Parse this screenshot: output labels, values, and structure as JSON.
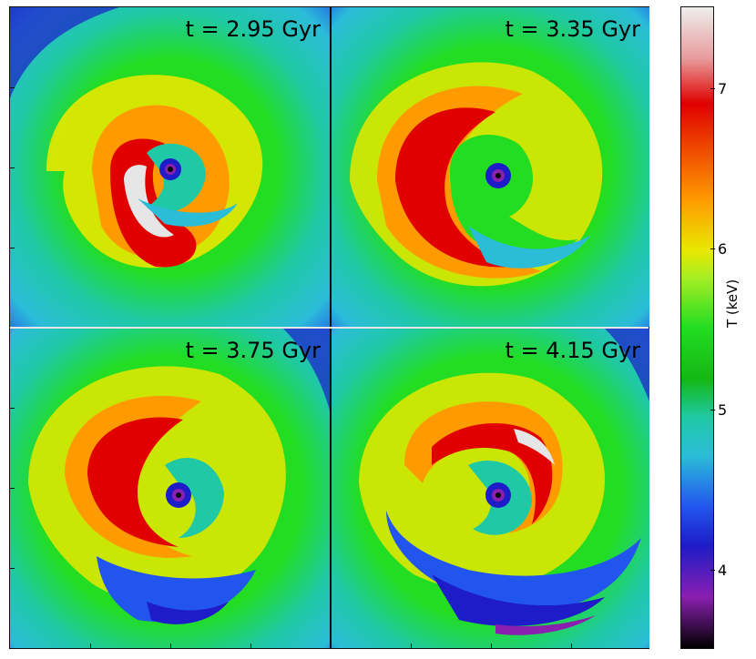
{
  "panels": [
    {
      "time": "t = 2.95 Gyr"
    },
    {
      "time": "t = 3.35 Gyr"
    },
    {
      "time": "t = 3.75 Gyr"
    },
    {
      "time": "t = 4.15 Gyr"
    }
  ],
  "colorbar": {
    "label": "T (keV)",
    "ticks": [
      "7",
      "6",
      "5",
      "4"
    ]
  },
  "colors": {
    "white_hot": "#e6e6e6",
    "red": "#e00000",
    "orange": "#ff9a00",
    "yellow": "#e8e800",
    "green": "#22dd22",
    "dark_green": "#14b814",
    "teal": "#1fc9a5",
    "cyan": "#2bbcd8",
    "blue": "#2255ee",
    "dark_blue": "#1d1cc8",
    "purple": "#8a1fb0",
    "black": "#000000"
  }
}
